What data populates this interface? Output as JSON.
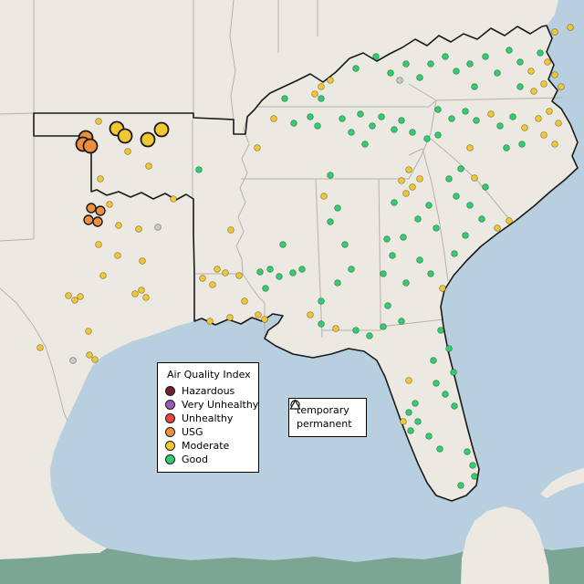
{
  "map": {
    "colors": {
      "ocean": "#b8cfdf",
      "land": "#ece9e3",
      "far_land": "#7ca694",
      "state_line": "#b5b2ad",
      "region_outline": "#1a1a1a"
    },
    "markers": [
      [
        108,
        133,
        "moderate",
        "dot"
      ],
      [
        140,
        166,
        "moderate",
        "dot"
      ],
      [
        163,
        182,
        "moderate",
        "dot"
      ],
      [
        110,
        196,
        "moderate",
        "dot"
      ],
      [
        190,
        218,
        "moderate",
        "dot"
      ],
      [
        120,
        224,
        "moderate",
        "dot"
      ],
      [
        130,
        247,
        "moderate",
        "dot"
      ],
      [
        152,
        251,
        "moderate",
        "dot"
      ],
      [
        253,
        252,
        "moderate",
        "dot"
      ],
      [
        108,
        268,
        "moderate",
        "dot"
      ],
      [
        129,
        280,
        "moderate",
        "dot"
      ],
      [
        156,
        286,
        "moderate",
        "dot"
      ],
      [
        113,
        302,
        "moderate",
        "dot"
      ],
      [
        222,
        305,
        "moderate",
        "dot"
      ],
      [
        238,
        295,
        "moderate",
        "dot"
      ],
      [
        247,
        299,
        "moderate",
        "dot"
      ],
      [
        233,
        312,
        "moderate",
        "dot"
      ],
      [
        75,
        324,
        "moderate",
        "dot"
      ],
      [
        82,
        329,
        "moderate",
        "dot"
      ],
      [
        88,
        325,
        "moderate",
        "dot"
      ],
      [
        148,
        322,
        "moderate",
        "dot"
      ],
      [
        155,
        318,
        "moderate",
        "dot"
      ],
      [
        160,
        326,
        "moderate",
        "dot"
      ],
      [
        97,
        363,
        "moderate",
        "dot"
      ],
      [
        44,
        381,
        "moderate",
        "dot"
      ],
      [
        98,
        389,
        "moderate",
        "dot"
      ],
      [
        104,
        394,
        "moderate",
        "dot"
      ],
      [
        262,
        302,
        "moderate",
        "dot"
      ],
      [
        268,
        330,
        "moderate",
        "dot"
      ],
      [
        283,
        345,
        "moderate",
        "dot"
      ],
      [
        290,
        350,
        "moderate",
        "dot"
      ],
      [
        230,
        352,
        "moderate",
        "dot"
      ],
      [
        252,
        348,
        "moderate",
        "dot"
      ],
      [
        282,
        162,
        "moderate",
        "dot"
      ],
      [
        300,
        130,
        "moderate",
        "dot"
      ],
      [
        345,
        103,
        "moderate",
        "dot"
      ],
      [
        352,
        95,
        "moderate",
        "dot"
      ],
      [
        362,
        88,
        "moderate",
        "dot"
      ],
      [
        355,
        215,
        "moderate",
        "dot"
      ],
      [
        340,
        345,
        "moderate",
        "dot"
      ],
      [
        368,
        360,
        "moderate",
        "dot"
      ],
      [
        448,
        417,
        "moderate",
        "dot"
      ],
      [
        485,
        316,
        "moderate",
        "dot"
      ],
      [
        440,
        198,
        "moderate",
        "dot"
      ],
      [
        448,
        186,
        "moderate",
        "dot"
      ],
      [
        452,
        205,
        "moderate",
        "dot"
      ],
      [
        445,
        212,
        "moderate",
        "dot"
      ],
      [
        460,
        196,
        "moderate",
        "dot"
      ],
      [
        515,
        162,
        "moderate",
        "dot"
      ],
      [
        520,
        195,
        "moderate",
        "dot"
      ],
      [
        538,
        125,
        "moderate",
        "dot"
      ],
      [
        545,
        250,
        "moderate",
        "dot"
      ],
      [
        558,
        242,
        "moderate",
        "dot"
      ],
      [
        575,
        140,
        "moderate",
        "dot"
      ],
      [
        590,
        130,
        "moderate",
        "dot"
      ],
      [
        602,
        122,
        "moderate",
        "dot"
      ],
      [
        612,
        135,
        "moderate",
        "dot"
      ],
      [
        596,
        148,
        "moderate",
        "dot"
      ],
      [
        608,
        158,
        "moderate",
        "dot"
      ],
      [
        582,
        78,
        "moderate",
        "dot"
      ],
      [
        600,
        68,
        "moderate",
        "dot"
      ],
      [
        608,
        82,
        "moderate",
        "dot"
      ],
      [
        615,
        95,
        "moderate",
        "dot"
      ],
      [
        596,
        92,
        "moderate",
        "dot"
      ],
      [
        585,
        100,
        "moderate",
        "dot"
      ],
      [
        608,
        35,
        "moderate",
        "dot"
      ],
      [
        625,
        30,
        "moderate",
        "dot"
      ],
      [
        442,
        462,
        "moderate",
        "dot"
      ],
      [
        218,
        186,
        "good",
        "dot"
      ],
      [
        285,
        298,
        "good",
        "dot"
      ],
      [
        296,
        295,
        "good",
        "dot"
      ],
      [
        306,
        303,
        "good",
        "dot"
      ],
      [
        321,
        299,
        "good",
        "dot"
      ],
      [
        331,
        295,
        "good",
        "dot"
      ],
      [
        291,
        316,
        "good",
        "dot"
      ],
      [
        310,
        268,
        "good",
        "dot"
      ],
      [
        362,
        192,
        "good",
        "dot"
      ],
      [
        370,
        228,
        "good",
        "dot"
      ],
      [
        362,
        243,
        "good",
        "dot"
      ],
      [
        378,
        268,
        "good",
        "dot"
      ],
      [
        370,
        310,
        "good",
        "dot"
      ],
      [
        385,
        295,
        "good",
        "dot"
      ],
      [
        352,
        330,
        "good",
        "dot"
      ],
      [
        322,
        135,
        "good",
        "dot"
      ],
      [
        340,
        128,
        "good",
        "dot"
      ],
      [
        348,
        138,
        "good",
        "dot"
      ],
      [
        375,
        130,
        "good",
        "dot"
      ],
      [
        395,
        125,
        "good",
        "dot"
      ],
      [
        408,
        138,
        "good",
        "dot"
      ],
      [
        418,
        128,
        "good",
        "dot"
      ],
      [
        432,
        142,
        "good",
        "dot"
      ],
      [
        440,
        132,
        "good",
        "dot"
      ],
      [
        452,
        145,
        "good",
        "dot"
      ],
      [
        400,
        158,
        "good",
        "dot"
      ],
      [
        385,
        145,
        "good",
        "dot"
      ],
      [
        312,
        108,
        "good",
        "dot"
      ],
      [
        352,
        108,
        "good",
        "dot"
      ],
      [
        390,
        75,
        "good",
        "dot"
      ],
      [
        412,
        62,
        "good",
        "dot"
      ],
      [
        428,
        80,
        "good",
        "dot"
      ],
      [
        445,
        70,
        "good",
        "dot"
      ],
      [
        460,
        85,
        "good",
        "dot"
      ],
      [
        472,
        70,
        "good",
        "dot"
      ],
      [
        488,
        62,
        "good",
        "dot"
      ],
      [
        500,
        78,
        "good",
        "dot"
      ],
      [
        515,
        70,
        "good",
        "dot"
      ],
      [
        520,
        95,
        "good",
        "dot"
      ],
      [
        532,
        62,
        "good",
        "dot"
      ],
      [
        545,
        80,
        "good",
        "dot"
      ],
      [
        558,
        55,
        "good",
        "dot"
      ],
      [
        570,
        68,
        "good",
        "dot"
      ],
      [
        592,
        58,
        "good",
        "dot"
      ],
      [
        570,
        95,
        "good",
        "dot"
      ],
      [
        480,
        120,
        "good",
        "dot"
      ],
      [
        495,
        130,
        "good",
        "dot"
      ],
      [
        510,
        122,
        "good",
        "dot"
      ],
      [
        522,
        132,
        "good",
        "dot"
      ],
      [
        548,
        138,
        "good",
        "dot"
      ],
      [
        562,
        128,
        "good",
        "dot"
      ],
      [
        572,
        158,
        "good",
        "dot"
      ],
      [
        555,
        162,
        "good",
        "dot"
      ],
      [
        480,
        148,
        "good",
        "dot"
      ],
      [
        468,
        152,
        "good",
        "dot"
      ],
      [
        505,
        185,
        "good",
        "dot"
      ],
      [
        492,
        196,
        "good",
        "dot"
      ],
      [
        532,
        205,
        "good",
        "dot"
      ],
      [
        515,
        225,
        "good",
        "dot"
      ],
      [
        500,
        215,
        "good",
        "dot"
      ],
      [
        528,
        240,
        "good",
        "dot"
      ],
      [
        510,
        258,
        "good",
        "dot"
      ],
      [
        498,
        278,
        "good",
        "dot"
      ],
      [
        432,
        222,
        "good",
        "dot"
      ],
      [
        470,
        225,
        "good",
        "dot"
      ],
      [
        458,
        240,
        "good",
        "dot"
      ],
      [
        478,
        250,
        "good",
        "dot"
      ],
      [
        442,
        260,
        "good",
        "dot"
      ],
      [
        424,
        262,
        "good",
        "dot"
      ],
      [
        430,
        280,
        "good",
        "dot"
      ],
      [
        460,
        285,
        "good",
        "dot"
      ],
      [
        472,
        300,
        "good",
        "dot"
      ],
      [
        445,
        310,
        "good",
        "dot"
      ],
      [
        420,
        300,
        "good",
        "dot"
      ],
      [
        425,
        335,
        "good",
        "dot"
      ],
      [
        352,
        355,
        "good",
        "dot"
      ],
      [
        390,
        362,
        "good",
        "dot"
      ],
      [
        405,
        368,
        "good",
        "dot"
      ],
      [
        420,
        358,
        "good",
        "dot"
      ],
      [
        440,
        352,
        "good",
        "dot"
      ],
      [
        483,
        362,
        "good",
        "dot"
      ],
      [
        492,
        382,
        "good",
        "dot"
      ],
      [
        475,
        395,
        "good",
        "dot"
      ],
      [
        497,
        408,
        "good",
        "dot"
      ],
      [
        478,
        420,
        "good",
        "dot"
      ],
      [
        488,
        432,
        "good",
        "dot"
      ],
      [
        498,
        445,
        "good",
        "dot"
      ],
      [
        455,
        442,
        "good",
        "dot"
      ],
      [
        448,
        452,
        "good",
        "dot"
      ],
      [
        458,
        462,
        "good",
        "dot"
      ],
      [
        450,
        472,
        "good",
        "dot"
      ],
      [
        470,
        478,
        "good",
        "dot"
      ],
      [
        482,
        492,
        "good",
        "dot"
      ],
      [
        512,
        495,
        "good",
        "dot"
      ],
      [
        518,
        510,
        "good",
        "dot"
      ],
      [
        520,
        522,
        "good",
        "dot"
      ],
      [
        505,
        532,
        "good",
        "dot"
      ],
      [
        438,
        88,
        "gray",
        "dot"
      ],
      [
        80,
        395,
        "gray",
        "dot"
      ],
      [
        173,
        249,
        "gray",
        "dot"
      ],
      [
        100,
        228,
        "usg",
        "med"
      ],
      [
        110,
        231,
        "usg",
        "med"
      ],
      [
        97,
        241,
        "usg",
        "med"
      ],
      [
        107,
        243,
        "usg",
        "med"
      ],
      [
        128,
        141,
        "moderate",
        "big"
      ],
      [
        137,
        149,
        "moderate",
        "big"
      ],
      [
        162,
        153,
        "moderate",
        "big"
      ],
      [
        177,
        142,
        "moderate",
        "big"
      ],
      [
        94,
        151,
        "usg",
        "big"
      ],
      [
        91,
        158,
        "usg",
        "big"
      ],
      [
        99,
        160,
        "usg",
        "big"
      ]
    ]
  },
  "marker_colors": {
    "hazardous": "#6e2430",
    "very_unhealthy": "#9b59b6",
    "unhealthy": "#e2483d",
    "usg": "#ee8f3e",
    "moderate": "#f2c832",
    "good": "#2fce6f",
    "gray": "#c9c9c7"
  },
  "legend_aqi": {
    "title": "Air Quality Index",
    "items": [
      {
        "label": "Hazardous",
        "color": "#6e2430"
      },
      {
        "label": "Very Unhealthy",
        "color": "#9b59b6"
      },
      {
        "label": "Unhealthy",
        "color": "#e2483d"
      },
      {
        "label": "USG",
        "color": "#ee8f3e"
      },
      {
        "label": "Moderate",
        "color": "#f2c832"
      },
      {
        "label": "Good",
        "color": "#2fce6f"
      }
    ]
  },
  "legend_shape": {
    "items": [
      {
        "shape": "circle",
        "label": "temporary"
      },
      {
        "shape": "triangle",
        "label": "permanent"
      }
    ]
  }
}
